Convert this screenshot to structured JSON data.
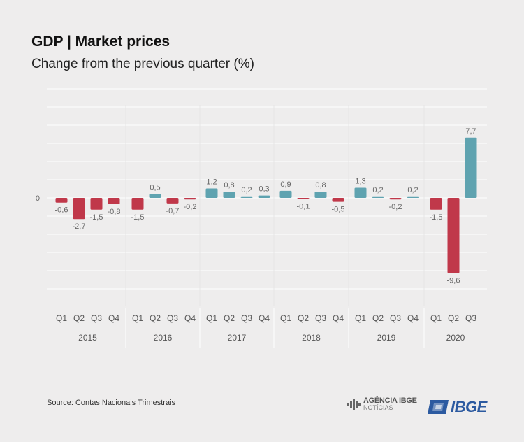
{
  "header": {
    "title": "GDP | Market prices",
    "subtitle": "Change from the previous quarter (%)"
  },
  "footer": {
    "source": "Source: Contas Nacionais Trimestrais",
    "agencia_logo_line1": "AGÊNCIA IBGE",
    "agencia_logo_line2": "NOTÍCIAS",
    "ibge_logo": "IBGE"
  },
  "colors": {
    "positive": "#5fa3b0",
    "negative": "#c0384a",
    "background": "#eeeded",
    "gridline": "#ffffff",
    "label": "#666666"
  },
  "chart_data": {
    "type": "bar",
    "title": "GDP | Market prices",
    "subtitle": "Change from the previous quarter (%)",
    "zero_tick_label": "0",
    "grid": true,
    "groups": [
      {
        "year": "2015",
        "quarters": [
          "Q1",
          "Q2",
          "Q3",
          "Q4"
        ],
        "values": [
          -0.6,
          -2.7,
          -1.5,
          -0.8
        ],
        "labels": [
          "-0,6",
          "-2,7",
          "-1,5",
          "-0,8"
        ]
      },
      {
        "year": "2016",
        "quarters": [
          "Q1",
          "Q2",
          "Q3",
          "Q4"
        ],
        "values": [
          -1.5,
          0.5,
          -0.7,
          -0.2
        ],
        "labels": [
          "-1,5",
          "0,5",
          "-0,7",
          "-0,2"
        ]
      },
      {
        "year": "2017",
        "quarters": [
          "Q1",
          "Q2",
          "Q3",
          "Q4"
        ],
        "values": [
          1.2,
          0.8,
          0.2,
          0.3
        ],
        "labels": [
          "1,2",
          "0,8",
          "0,2",
          "0,3"
        ]
      },
      {
        "year": "2018",
        "quarters": [
          "Q1",
          "Q2",
          "Q3",
          "Q4"
        ],
        "values": [
          0.9,
          -0.1,
          0.8,
          -0.5
        ],
        "labels": [
          "0,9",
          "-0,1",
          "0,8",
          "-0,5"
        ]
      },
      {
        "year": "2019",
        "quarters": [
          "Q1",
          "Q2",
          "Q3",
          "Q4"
        ],
        "values": [
          1.3,
          0.2,
          -0.2,
          0.2
        ],
        "labels": [
          "1,3",
          "0,2",
          "-0,2",
          "0,2"
        ]
      },
      {
        "year": "2020",
        "quarters": [
          "Q1",
          "Q2",
          "Q3"
        ],
        "values": [
          -1.5,
          -9.6,
          7.7
        ],
        "labels": [
          "-1,5",
          "-9,6",
          "7,7"
        ]
      }
    ]
  }
}
